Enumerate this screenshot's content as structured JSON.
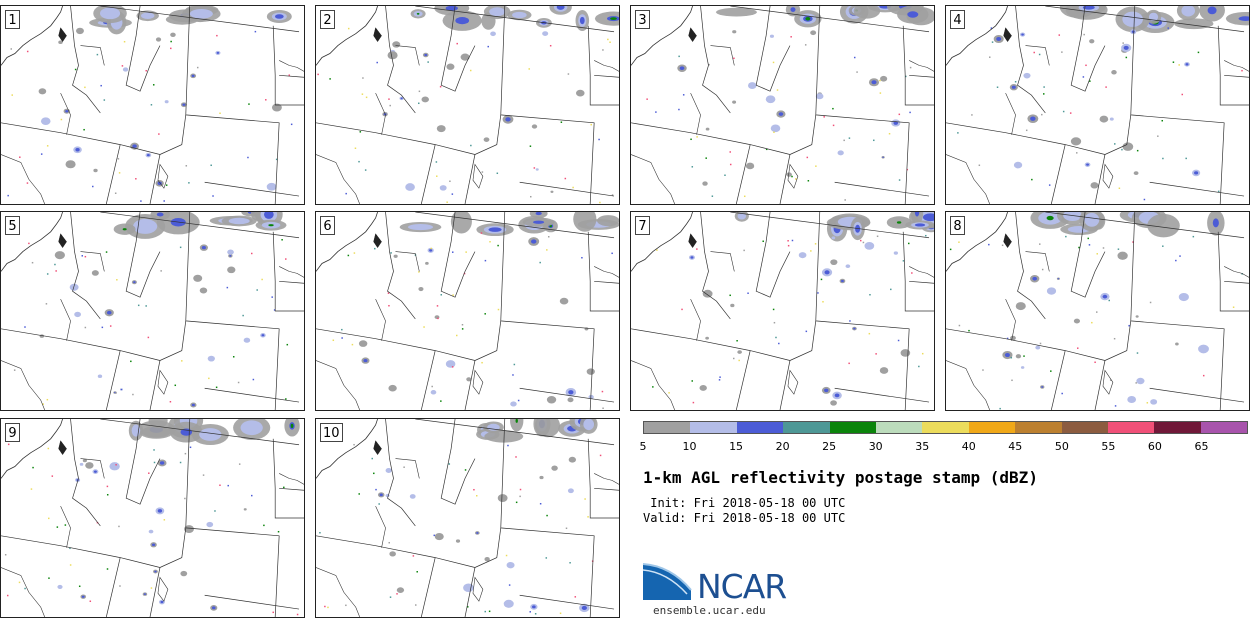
{
  "panels": [
    {
      "label": "1"
    },
    {
      "label": "2"
    },
    {
      "label": "3"
    },
    {
      "label": "4"
    },
    {
      "label": "5"
    },
    {
      "label": "6"
    },
    {
      "label": "7"
    },
    {
      "label": "8"
    },
    {
      "label": "9"
    },
    {
      "label": "10"
    }
  ],
  "colorbar": {
    "colors": [
      "#a0a0a0",
      "#b4bde8",
      "#4c5cd6",
      "#4e9896",
      "#0b840b",
      "#bcdcbc",
      "#ecdc5c",
      "#f0a818",
      "#bc8030",
      "#8c5c40",
      "#f05078",
      "#701838",
      "#a854ac"
    ],
    "ticks": [
      "5",
      "10",
      "15",
      "20",
      "25",
      "30",
      "35",
      "40",
      "45",
      "50",
      "55",
      "60",
      "65"
    ]
  },
  "title": "1-km AGL reflectivity postage stamp (dBZ)",
  "init": " Init: Fri 2018-05-18 00 UTC",
  "valid": "Valid: Fri 2018-05-18 00 UTC",
  "logo": {
    "text": "NCAR",
    "url": "ensemble.ucar.edu"
  }
}
